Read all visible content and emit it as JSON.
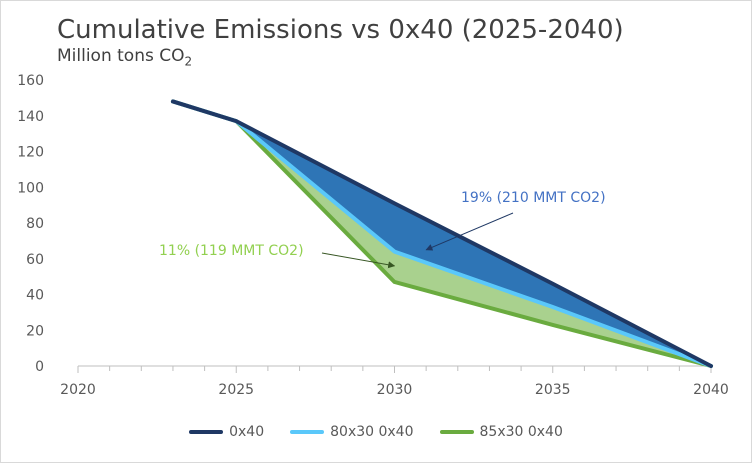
{
  "chart_data": {
    "type": "line",
    "title": "Cumulative Emissions vs 0x40 (2025-2040)",
    "subtitle_main": "Million tons CO",
    "subtitle_sub": "2",
    "ylim": [
      0,
      160
    ],
    "yticks": [
      0,
      20,
      40,
      60,
      80,
      100,
      120,
      140,
      160
    ],
    "xlim": [
      2020,
      2040
    ],
    "xticks": [
      2020,
      2025,
      2030,
      2035,
      2040
    ],
    "x_minor_step": 1,
    "grid": false,
    "legend_position": "bottom",
    "series": [
      {
        "name": "0x40",
        "color": "#1f3864",
        "points": [
          [
            2023,
            148
          ],
          [
            2025,
            137
          ],
          [
            2030,
            91
          ],
          [
            2035,
            46
          ],
          [
            2040,
            0
          ]
        ]
      },
      {
        "name": "80x30 0x40",
        "color": "#5ac8fa",
        "points": [
          [
            2023,
            148
          ],
          [
            2025,
            137
          ],
          [
            2030,
            64
          ],
          [
            2035,
            33
          ],
          [
            2040,
            0
          ]
        ]
      },
      {
        "name": "85x30 0x40",
        "color": "#6aab3f",
        "points": [
          [
            2023,
            148
          ],
          [
            2025,
            137
          ],
          [
            2030,
            47
          ],
          [
            2035,
            23
          ],
          [
            2040,
            0
          ]
        ]
      }
    ],
    "fills": [
      {
        "upper": "0x40",
        "lower": "80x30 0x40",
        "color": "#2e75b6"
      },
      {
        "upper": "80x30 0x40",
        "lower": "85x30 0x40",
        "color": "#a9d18e"
      }
    ],
    "annotations": [
      {
        "text": "19% (210 MMT CO2)",
        "color": "#4472c4",
        "arrow_to": [
          2031,
          65
        ]
      },
      {
        "text": "11% (119 MMT CO2)",
        "color": "#92d050",
        "arrow_to": [
          2030,
          56
        ]
      }
    ]
  }
}
